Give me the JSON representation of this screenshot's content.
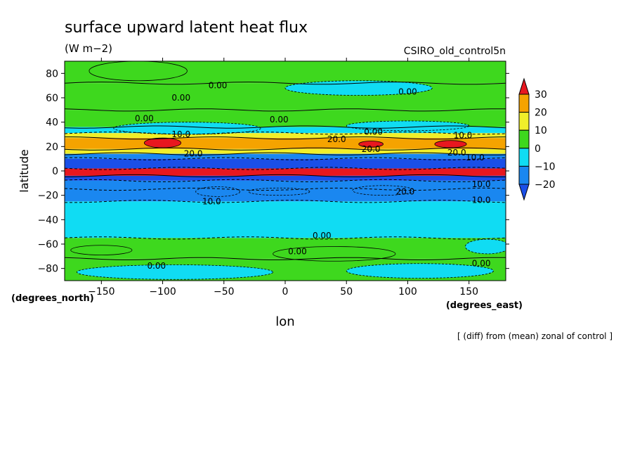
{
  "chart_data": {
    "type": "heatmap",
    "title": "surface upward latent heat flux",
    "units": "(W m−2)",
    "run_label": "CSIRO_old_control5n",
    "xlabel": "lon",
    "ylabel": "latitude",
    "x_units": "(degrees_east)",
    "y_units": "(degrees_north)",
    "note": "[ (diff) from (mean) zonal of control ]",
    "xlim": [
      -180,
      180
    ],
    "ylim": [
      -90,
      90
    ],
    "x_ticks": [
      -150,
      -100,
      -50,
      0,
      50,
      100,
      150
    ],
    "y_ticks": [
      80,
      60,
      40,
      20,
      0,
      -20,
      -40,
      -60,
      -80
    ],
    "x_tick_labels": [
      "−150",
      "−100",
      "−50",
      "0",
      "50",
      "100",
      "150"
    ],
    "y_tick_labels": [
      "80",
      "60",
      "40",
      "20",
      "0",
      "−20",
      "−40",
      "−60",
      "−80"
    ],
    "colorbar": {
      "levels": [
        30,
        20,
        10,
        0,
        -10,
        -20
      ],
      "level_labels": [
        "30",
        "20",
        "10",
        "0",
        "−10",
        "−20"
      ],
      "colors": [
        "#e8171f",
        "#f5a300",
        "#f0ef2a",
        "#3ed81e",
        "#10dcf3",
        "#1a87f0",
        "#1a4fe8"
      ]
    },
    "bands": [
      {
        "lat": [
          72,
          90
        ],
        "class": 0
      },
      {
        "lat": [
          50,
          72
        ],
        "class": 0
      },
      {
        "lat": [
          36,
          50
        ],
        "class": 0
      },
      {
        "lat": [
          31,
          36
        ],
        "class": -1
      },
      {
        "lat": [
          27,
          31
        ],
        "class": 1
      },
      {
        "lat": [
          18,
          27
        ],
        "class": 2
      },
      {
        "lat": [
          14,
          18
        ],
        "class": 1
      },
      {
        "lat": [
          10,
          14
        ],
        "class": -2
      },
      {
        "lat": [
          2,
          10
        ],
        "class": -3
      },
      {
        "lat": [
          -4,
          2
        ],
        "class": 3
      },
      {
        "lat": [
          -8,
          -4
        ],
        "class": -3
      },
      {
        "lat": [
          -15,
          -8
        ],
        "class": -2
      },
      {
        "lat": [
          -25,
          -15
        ],
        "class": -2
      },
      {
        "lat": [
          -55,
          -25
        ],
        "class": -1
      },
      {
        "lat": [
          -72,
          -55
        ],
        "class": 0
      },
      {
        "lat": [
          -90,
          -72
        ],
        "class": 0
      }
    ],
    "blobs": [
      {
        "lon": -100,
        "lat": 23,
        "rlon": 15,
        "rlat": 4,
        "class": 3
      },
      {
        "lon": 70,
        "lat": 22,
        "rlon": 10,
        "rlat": 2.5,
        "class": 3
      },
      {
        "lon": 135,
        "lat": 22,
        "rlon": 13,
        "rlat": 3,
        "class": 3
      },
      {
        "lon": -55,
        "lat": -17,
        "rlon": 18,
        "rlat": 4,
        "class": -2
      },
      {
        "lon": -5,
        "lat": -17,
        "rlon": 25,
        "rlat": 3,
        "class": -2
      },
      {
        "lon": 80,
        "lat": -16,
        "rlon": 25,
        "rlat": 4,
        "class": -2
      },
      {
        "lon": -120,
        "lat": 82,
        "rlon": 40,
        "rlat": 8,
        "class": 0
      },
      {
        "lon": 60,
        "lat": 68,
        "rlon": 60,
        "rlat": 6,
        "class": -1
      },
      {
        "lon": -80,
        "lat": 35,
        "rlon": 60,
        "rlat": 5,
        "class": -1
      },
      {
        "lon": 100,
        "lat": 37,
        "rlon": 50,
        "rlat": 4,
        "class": -1
      },
      {
        "lon": -150,
        "lat": -65,
        "rlon": 25,
        "rlat": 4,
        "class": 0
      },
      {
        "lon": 40,
        "lat": -68,
        "rlon": 50,
        "rlat": 6,
        "class": 0
      },
      {
        "lon": 165,
        "lat": -62,
        "rlon": 18,
        "rlat": 6,
        "class": -1
      },
      {
        "lon": -90,
        "lat": -83,
        "rlon": 80,
        "rlat": 6,
        "class": -1
      },
      {
        "lon": 110,
        "lat": -82,
        "rlon": 60,
        "rlat": 6,
        "class": -1
      }
    ],
    "contour_labels": [
      {
        "text": "0.00",
        "lon": -55,
        "lat": 70
      },
      {
        "text": "0.00",
        "lon": -85,
        "lat": 60
      },
      {
        "text": "0.00",
        "lon": 100,
        "lat": 65
      },
      {
        "text": "0.00",
        "lon": -115,
        "lat": 43
      },
      {
        "text": "0.00",
        "lon": -5,
        "lat": 42
      },
      {
        "text": "0.00",
        "lon": 72,
        "lat": 32
      },
      {
        "text": "10.0",
        "lon": -85,
        "lat": 30
      },
      {
        "text": "20.0",
        "lon": 42,
        "lat": 26
      },
      {
        "text": "10.0",
        "lon": 145,
        "lat": 29
      },
      {
        "text": "20.0",
        "lon": 70,
        "lat": 18
      },
      {
        "text": "20.0",
        "lon": -75,
        "lat": 14
      },
      {
        "text": "20.0",
        "lon": 140,
        "lat": 15
      },
      {
        "text": "10.0",
        "lon": 155,
        "lat": 11
      },
      {
        "text": "20.0",
        "lon": 98,
        "lat": -17
      },
      {
        "text": "10.0",
        "lon": -60,
        "lat": -25
      },
      {
        "text": "10.0",
        "lon": 160,
        "lat": -24
      },
      {
        "text": "10.0",
        "lon": 160,
        "lat": -11
      },
      {
        "text": "0.00",
        "lon": 30,
        "lat": -53
      },
      {
        "text": "0.00",
        "lon": 10,
        "lat": -66
      },
      {
        "text": "0.00",
        "lon": -105,
        "lat": -78
      },
      {
        "text": "0.00",
        "lon": 160,
        "lat": -76
      }
    ]
  }
}
